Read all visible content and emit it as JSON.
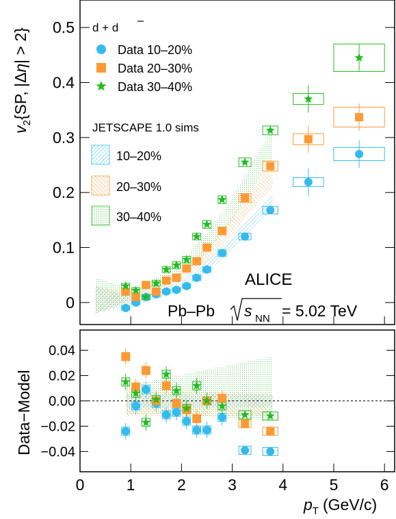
{
  "chart_data": [
    {
      "type": "scatter",
      "panel": "top",
      "xlabel_main": "p",
      "xlabel_sub": "T",
      "xlabel_units": "(GeV/c)",
      "ylabel": "v2{SP, |Δη| > 2}",
      "ylabel_parts": {
        "v": "v",
        "sub": "2",
        "rest": "{SP, |Δ",
        "eta": "η",
        "rest2": "| > 2}"
      },
      "xlim": [
        0,
        6.2
      ],
      "ylim": [
        -0.04,
        0.55
      ],
      "yticks": [
        0,
        0.1,
        0.2,
        0.3,
        0.4,
        0.5
      ],
      "ytick_labels": [
        "0",
        "0.1",
        "0.2",
        "0.3",
        "0.4",
        "0.5"
      ],
      "legend_title": "d + d̄",
      "legend_title_parts": {
        "a": "d + ",
        "b": "d"
      },
      "legend_data": [
        "Data 10–20%",
        "Data 20–30%",
        "Data 30–40%"
      ],
      "legend_model_title": "JETSCAPE 1.0 sims",
      "legend_model": [
        "10–20%",
        "20–30%",
        "30–40%"
      ],
      "annotation_experiment": "ALICE",
      "annotation_system": "Pb–Pb",
      "annotation_energy_sym": "s",
      "annotation_energy_sub": "NN",
      "annotation_energy_val": "= 5.02 TeV",
      "colors": {
        "c1020": "#33bbee",
        "c2030": "#ff9933",
        "c3040": "#22bb22"
      },
      "series": [
        {
          "name": "Data 10–20%",
          "marker": "circle",
          "x": [
            0.9,
            1.1,
            1.3,
            1.5,
            1.7,
            1.9,
            2.1,
            2.3,
            2.5,
            2.8,
            3.25,
            3.75,
            4.5,
            5.5
          ],
          "y": [
            -0.01,
            0.0,
            0.01,
            0.015,
            0.02,
            0.023,
            0.03,
            0.045,
            0.06,
            0.09,
            0.12,
            0.168,
            0.219,
            0.27
          ],
          "syst": [
            0.004,
            0.004,
            0.004,
            0.004,
            0.004,
            0.004,
            0.004,
            0.005,
            0.005,
            0.006,
            0.006,
            0.007,
            0.008,
            0.012
          ]
        },
        {
          "name": "Data 20–30%",
          "marker": "square",
          "x": [
            0.9,
            1.1,
            1.3,
            1.5,
            1.7,
            1.9,
            2.1,
            2.3,
            2.5,
            2.8,
            3.25,
            3.75,
            4.5,
            5.5
          ],
          "y": [
            0.02,
            0.01,
            0.032,
            0.02,
            0.04,
            0.045,
            0.062,
            0.075,
            0.1,
            0.13,
            0.19,
            0.248,
            0.297,
            0.337
          ],
          "syst": [
            0.005,
            0.005,
            0.005,
            0.005,
            0.005,
            0.005,
            0.005,
            0.006,
            0.006,
            0.007,
            0.008,
            0.009,
            0.01,
            0.018
          ]
        },
        {
          "name": "Data 30–40%",
          "marker": "star",
          "x": [
            0.9,
            1.1,
            1.3,
            1.5,
            1.7,
            1.9,
            2.1,
            2.3,
            2.5,
            2.8,
            3.25,
            3.75,
            4.5,
            5.5
          ],
          "y": [
            0.03,
            0.022,
            0.01,
            0.035,
            0.06,
            0.068,
            0.078,
            0.12,
            0.142,
            0.187,
            0.255,
            0.313,
            0.37,
            0.445
          ],
          "syst": [
            0.005,
            0.005,
            0.005,
            0.005,
            0.005,
            0.006,
            0.006,
            0.006,
            0.007,
            0.007,
            0.008,
            0.008,
            0.01,
            0.025
          ]
        }
      ],
      "model_bands": [
        {
          "name": "10–20%",
          "x": [
            0.3,
            1.0,
            1.5,
            2.0,
            2.5,
            3.0,
            3.5,
            3.8
          ],
          "lo": [
            -0.02,
            -0.005,
            0.005,
            0.025,
            0.055,
            0.095,
            0.14,
            0.17
          ],
          "hi": [
            0.03,
            0.01,
            0.02,
            0.04,
            0.075,
            0.12,
            0.17,
            0.2
          ]
        },
        {
          "name": "20–30%",
          "x": [
            0.3,
            1.0,
            1.5,
            2.0,
            2.5,
            3.0,
            3.5,
            3.8
          ],
          "lo": [
            -0.02,
            0.0,
            0.015,
            0.04,
            0.075,
            0.125,
            0.18,
            0.21
          ],
          "hi": [
            0.03,
            0.02,
            0.035,
            0.06,
            0.1,
            0.155,
            0.215,
            0.26
          ]
        },
        {
          "name": "30–40%",
          "x": [
            0.3,
            1.0,
            1.5,
            2.0,
            2.5,
            3.0,
            3.5,
            3.8
          ],
          "lo": [
            -0.02,
            0.005,
            0.02,
            0.05,
            0.09,
            0.15,
            0.22,
            0.26
          ],
          "hi": [
            0.045,
            0.025,
            0.045,
            0.075,
            0.125,
            0.19,
            0.27,
            0.32
          ]
        }
      ]
    },
    {
      "type": "scatter",
      "panel": "bottom",
      "ylabel": "Data−Model",
      "xlim": [
        0,
        6.2
      ],
      "ylim": [
        -0.056,
        0.056
      ],
      "yticks": [
        -0.04,
        -0.02,
        0.0,
        0.02,
        0.04
      ],
      "ytick_labels": [
        "−0.04",
        "−0.02",
        "0.00",
        "0.02",
        "0.04"
      ],
      "xticks": [
        0,
        1,
        2,
        3,
        4,
        5,
        6
      ],
      "xtick_labels": [
        "0",
        "1",
        "2",
        "3",
        "4",
        "5",
        "6"
      ],
      "reference_line": 0.0,
      "series": [
        {
          "name": "Data 10–20%",
          "marker": "circle",
          "x": [
            0.9,
            1.1,
            1.3,
            1.5,
            1.7,
            1.9,
            2.1,
            2.3,
            2.5,
            2.8,
            3.25,
            3.75
          ],
          "y": [
            -0.024,
            -0.004,
            0.009,
            -0.002,
            -0.011,
            -0.009,
            -0.016,
            -0.023,
            -0.023,
            -0.013,
            -0.039,
            -0.04
          ]
        },
        {
          "name": "Data 20–30%",
          "marker": "square",
          "x": [
            0.9,
            1.1,
            1.3,
            1.5,
            1.7,
            1.9,
            2.1,
            2.3,
            2.5,
            2.8,
            3.25,
            3.75
          ],
          "y": [
            0.035,
            0.011,
            0.024,
            0.0,
            0.012,
            -0.002,
            -0.007,
            -0.014,
            0.0,
            0.002,
            -0.018,
            -0.024
          ]
        },
        {
          "name": "Data 30–40%",
          "marker": "star",
          "x": [
            0.9,
            1.1,
            1.3,
            1.5,
            1.7,
            1.9,
            2.1,
            2.3,
            2.5,
            2.8,
            3.25,
            3.75
          ],
          "y": [
            0.015,
            0.006,
            -0.017,
            0.001,
            0.021,
            0.008,
            -0.006,
            0.012,
            0.0,
            -0.004,
            -0.011,
            -0.012
          ]
        }
      ]
    }
  ]
}
